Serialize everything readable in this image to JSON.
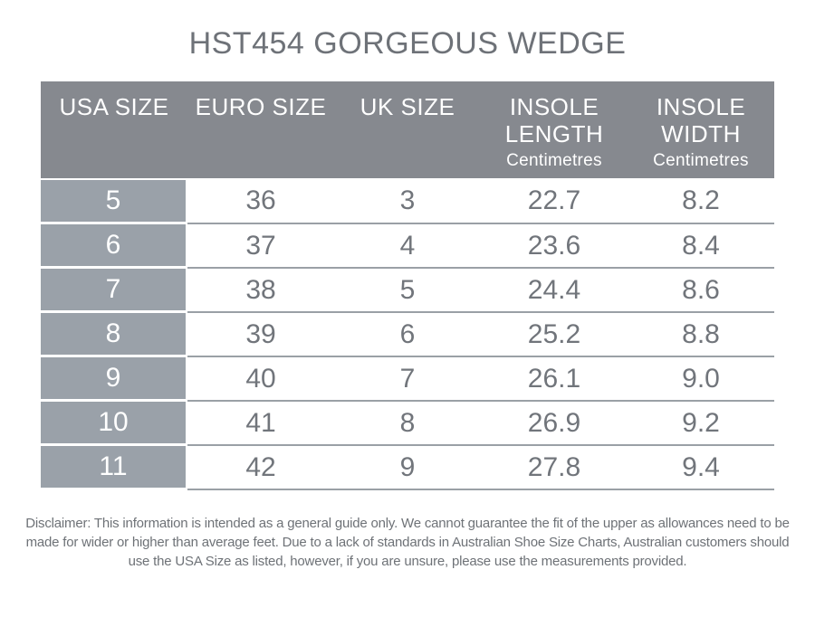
{
  "page": {
    "title": "HST454 GORGEOUS WEDGE"
  },
  "chart_data": {
    "type": "table",
    "title": "HST454 GORGEOUS WEDGE",
    "columns": [
      {
        "label": "USA SIZE",
        "sublabel": ""
      },
      {
        "label": "EURO SIZE",
        "sublabel": ""
      },
      {
        "label": "UK SIZE",
        "sublabel": ""
      },
      {
        "label": "INSOLE LENGTH",
        "sublabel": "Centimetres"
      },
      {
        "label": "INSOLE WIDTH",
        "sublabel": "Centimetres"
      }
    ],
    "rows": [
      [
        "5",
        "36",
        "3",
        "22.7",
        "8.2"
      ],
      [
        "6",
        "37",
        "4",
        "23.6",
        "8.4"
      ],
      [
        "7",
        "38",
        "5",
        "24.4",
        "8.6"
      ],
      [
        "8",
        "39",
        "6",
        "25.2",
        "8.8"
      ],
      [
        "9",
        "40",
        "7",
        "26.1",
        "9.0"
      ],
      [
        "10",
        "41",
        "8",
        "26.9",
        "9.2"
      ],
      [
        "11",
        "42",
        "9",
        "27.8",
        "9.4"
      ]
    ],
    "units": "Centimetres"
  },
  "disclaimer": "Disclaimer: This information is intended as a general guide only. We cannot guarantee the fit of the upper as allowances need to be made for wider or higher than average feet. Due to a lack of standards in Australian Shoe Size Charts, Australian customers should use the USA Size as listed, however, if you are unsure, please use the measurements provided.",
  "colors": {
    "header_background": "#86898f",
    "row_label_background": "#9aa1a9",
    "row_divider": "#9aa0a6",
    "text_gray": "#6e7278",
    "header_text": "#ffffff"
  }
}
